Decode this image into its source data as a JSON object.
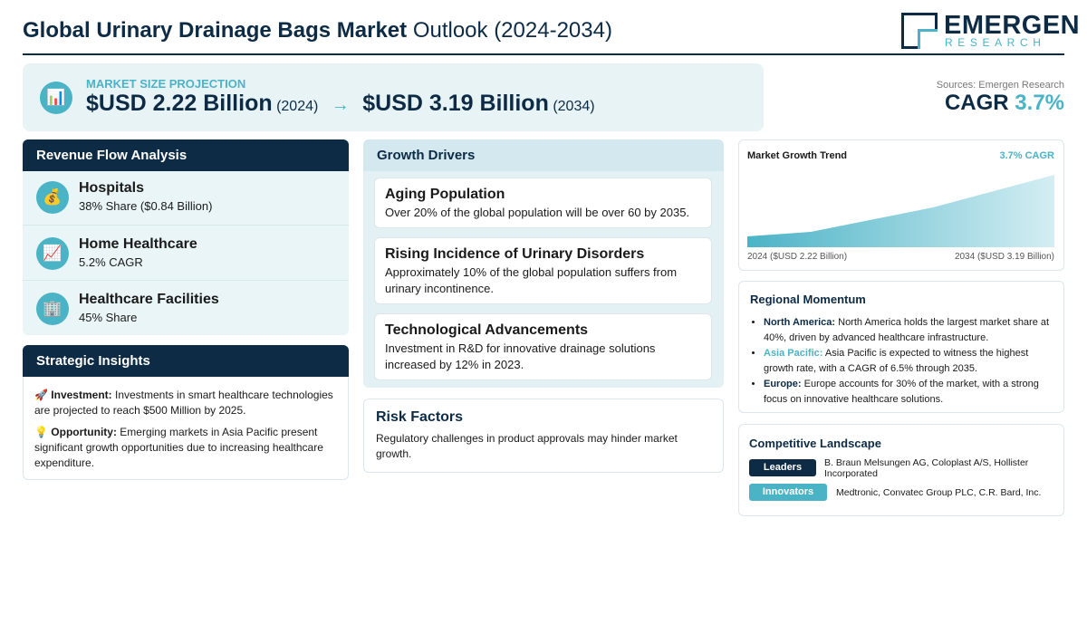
{
  "header": {
    "title_main": "Global Urinary Drainage Bags Market",
    "title_sub": "Outlook (2024-2034)",
    "logo_name": "EMERGEN",
    "logo_tagline": "RESEARCH"
  },
  "projection": {
    "icon": "📊",
    "label": "MARKET SIZE PROJECTION",
    "start_value": "$USD 2.22 Billion",
    "start_year": "(2024)",
    "arrow": "→",
    "end_value": "$USD 3.19 Billion",
    "end_year": "(2034)"
  },
  "source": {
    "text": "Sources: Emergen Research",
    "cagr_label": "CAGR",
    "cagr_value": "3.7%"
  },
  "revenue_flow": {
    "title": "Revenue Flow Analysis",
    "items": [
      {
        "icon": "💰",
        "name": "Hospitals",
        "detail": "38% Share ($0.84 Billion)"
      },
      {
        "icon": "📈",
        "name": "Home Healthcare",
        "detail": "5.2% CAGR"
      },
      {
        "icon": "🏢",
        "name": "Healthcare Facilities",
        "detail": "45% Share"
      }
    ]
  },
  "strategic_insights": {
    "title": "Strategic Insights",
    "items": [
      {
        "icon": "🚀",
        "label": "Investment:",
        "text": "Investments in smart healthcare technologies are projected to reach $500 Million by 2025."
      },
      {
        "icon": "💡",
        "label": "Opportunity:",
        "text": "Emerging markets in Asia Pacific present significant growth opportunities due to increasing healthcare expenditure."
      }
    ]
  },
  "growth_drivers": {
    "title": "Growth Drivers",
    "items": [
      {
        "title": "Aging Population",
        "text": "Over 20% of the global population will be over 60 by 2035."
      },
      {
        "title": "Rising Incidence of Urinary Disorders",
        "text": "Approximately 10% of the global population suffers from urinary incontinence."
      },
      {
        "title": "Technological Advancements",
        "text": "Investment in R&D for innovative drainage solutions increased by 12% in 2023."
      }
    ]
  },
  "risk_factors": {
    "title": "Risk Factors",
    "text": "Regulatory challenges in product approvals may hinder market growth."
  },
  "trend": {
    "title": "Market Growth Trend",
    "badge": "3.7% CAGR",
    "start_label": "2024 ($USD 2.22 Billion)",
    "end_label": "2034 ($USD 3.19 Billion)"
  },
  "regional": {
    "title": "Regional Momentum",
    "items": [
      {
        "region": "North America:",
        "text": "North America holds the largest market share at 40%, driven by advanced healthcare infrastructure."
      },
      {
        "region": "Asia Pacific:",
        "text": "Asia Pacific is expected to witness the highest growth rate, with a CAGR of 6.5% through 2035."
      },
      {
        "region": "Europe:",
        "text": "Europe accounts for 30% of the market, with a strong focus on innovative healthcare solutions."
      }
    ]
  },
  "competitive": {
    "title": "Competitive Landscape",
    "groups": [
      {
        "label": "Leaders",
        "companies": "B. Braun Melsungen AG, Coloplast A/S, Hollister Incorporated"
      },
      {
        "label": "Innovators",
        "companies": "Medtronic, Convatec Group PLC, C.R. Bard, Inc."
      }
    ]
  }
}
